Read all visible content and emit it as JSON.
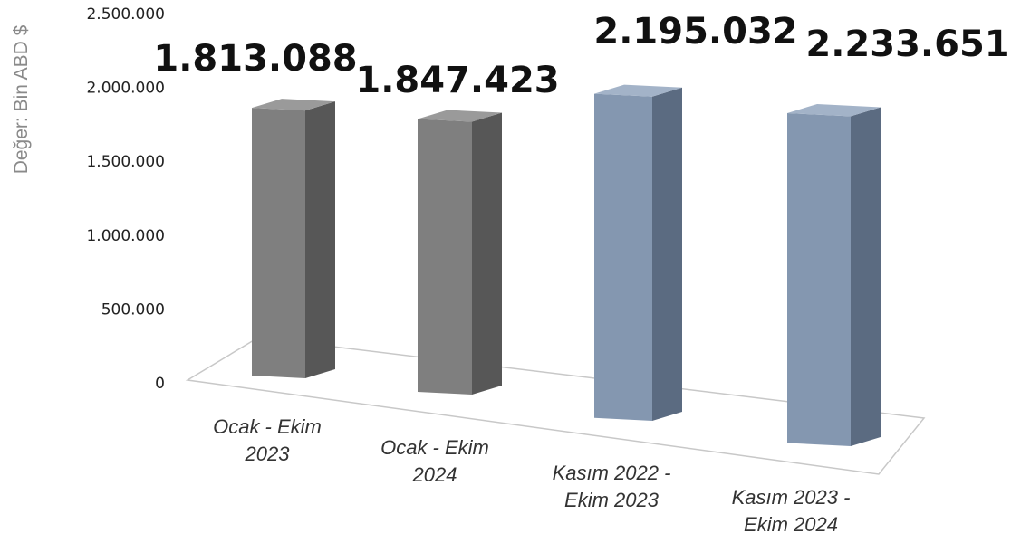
{
  "chart_data": {
    "type": "bar",
    "ylabel": "Değer: Bin ABD $",
    "ylim": [
      0,
      2500000
    ],
    "yticks": [
      "0",
      "500.000",
      "1.000.000",
      "1.500.000",
      "2.000.000",
      "2.500.000"
    ],
    "categories": [
      [
        "Ocak - Ekim",
        "2023"
      ],
      [
        "Ocak - Ekim",
        "2024"
      ],
      [
        "Kasım 2022 -",
        "Ekim 2023"
      ],
      [
        "Kasım 2023 -",
        "Ekim 2024"
      ]
    ],
    "values": [
      1813088,
      1847423,
      2195032,
      2233651
    ],
    "data_labels": [
      "1.813.088",
      "1.847.423",
      "2.195.032",
      "2.233.651"
    ],
    "bar_colors": [
      "#7f7f7f",
      "#7f7f7f",
      "#8497b0",
      "#8497b0"
    ],
    "bar_side_colors": [
      "#575757",
      "#575757",
      "#5b6b81",
      "#5b6b81"
    ],
    "bar_top_colors": [
      "#9a9a9a",
      "#9a9a9a",
      "#a3b3c8",
      "#a3b3c8"
    ],
    "grid": false,
    "legend": "none",
    "projection": "3d"
  }
}
